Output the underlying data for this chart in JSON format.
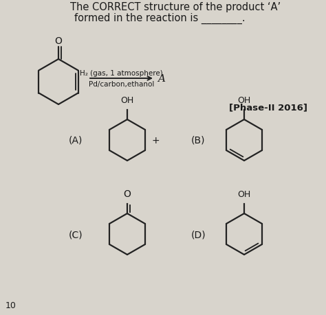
{
  "bg_color": "#d8d4cc",
  "text_color": "#1a1a1a",
  "title_line1": "The CORRECT structure of the product ‘A’",
  "title_line2": "formed in the reaction is ________.",
  "reagent_top": "H₂ (gas, 1 atmosphere)",
  "reagent_bottom": "Pd/carbon,ethanol",
  "phase": "[Phase-II 2016]",
  "label_A": "(A)",
  "label_B": "(B)",
  "label_C": "(C)",
  "label_D": "(D)",
  "line_color": "#222222",
  "line_width": 1.6,
  "font_size_title": 10.5,
  "font_size_label": 10,
  "font_size_small": 7.5,
  "font_size_atom": 9
}
